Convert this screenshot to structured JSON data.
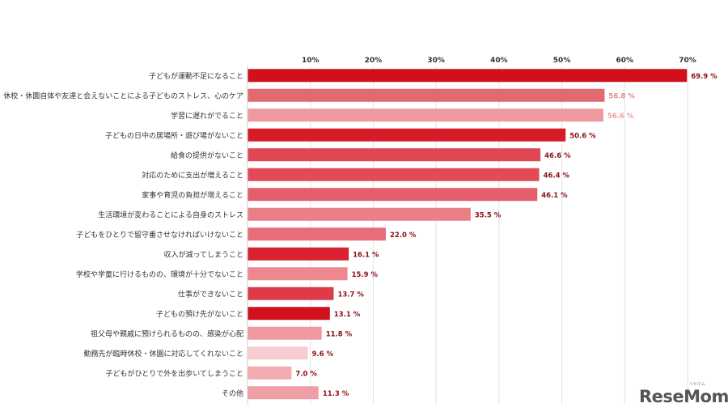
{
  "chart_data": {
    "type": "bar",
    "orientation": "horizontal",
    "title": "",
    "xlabel": "",
    "ylabel": "",
    "xlim": [
      0,
      70
    ],
    "x_ticks": [
      {
        "value": 10,
        "label": "10%"
      },
      {
        "value": 20,
        "label": "20%"
      },
      {
        "value": 30,
        "label": "30%"
      },
      {
        "value": 40,
        "label": "40%"
      },
      {
        "value": 50,
        "label": "50%"
      },
      {
        "value": 60,
        "label": "60%"
      },
      {
        "value": 70,
        "label": "70%"
      }
    ],
    "tick_position": "top",
    "grid": true,
    "legend": false,
    "bars": [
      {
        "category": "子どもが運動不足になること",
        "value": 69.9,
        "label": "69.9 %",
        "color": "#D0111B",
        "label_color": "#8B1118"
      },
      {
        "category": "休校・休園自体や友達と会えないことによる子どものストレス、心のケア",
        "value": 56.8,
        "label": "56.8 %",
        "color": "#E06A6F",
        "label_color": "#E48A8E"
      },
      {
        "category": "学習に遅れがでること",
        "value": 56.6,
        "label": "56.6 %",
        "color": "#EC9A9D",
        "label_color": "#EDA0A3"
      },
      {
        "category": "子どもの日中の居場所・遊び場がないこと",
        "value": 50.6,
        "label": "50.6 %",
        "color": "#D51D2A",
        "label_color": "#8B1118"
      },
      {
        "category": "給食の提供がないこと",
        "value": 46.6,
        "label": "46.6 %",
        "color": "#E14654",
        "label_color": "#8B1118"
      },
      {
        "category": "対応のために支出が増えること",
        "value": 46.4,
        "label": "46.4 %",
        "color": "#E24A58",
        "label_color": "#8B1118"
      },
      {
        "category": "家事や育児の負担が増えること",
        "value": 46.1,
        "label": "46.1 %",
        "color": "#E35E6A",
        "label_color": "#8B1118"
      },
      {
        "category": "生活環境が変わることによる自身のストレス",
        "value": 35.5,
        "label": "35.5 %",
        "color": "#E98088",
        "label_color": "#8B1118"
      },
      {
        "category": "子どもをひとりで留守番させなければいけないこと",
        "value": 22.0,
        "label": "22.0 %",
        "color": "#E56E78",
        "label_color": "#8B1118"
      },
      {
        "category": "収入が減ってしまうこと",
        "value": 16.1,
        "label": "16.1 %",
        "color": "#D8222F",
        "label_color": "#8B1118"
      },
      {
        "category": "学校や学童に行けるものの、環境が十分でないこと",
        "value": 15.9,
        "label": "15.9 %",
        "color": "#EE8890",
        "label_color": "#8B1118"
      },
      {
        "category": "仕事ができないこと",
        "value": 13.7,
        "label": "13.7 %",
        "color": "#DE3A48",
        "label_color": "#8B1118"
      },
      {
        "category": "子どもの預け先がないこと",
        "value": 13.1,
        "label": "13.1 %",
        "color": "#D0111B",
        "label_color": "#8B1118"
      },
      {
        "category": "祖父母や親戚に預けられるものの、感染が心配",
        "value": 11.8,
        "label": "11.8 %",
        "color": "#EE9AA0",
        "label_color": "#8B1118"
      },
      {
        "category": "勤務先が臨時休校・休園に対応してくれないこと",
        "value": 9.6,
        "label": "9.6 %",
        "color": "#F6CDD0",
        "label_color": "#8B1118"
      },
      {
        "category": "子どもがひとりで外を出歩いてしまうこと",
        "value": 7.0,
        "label": "7.0 %",
        "color": "#F2ABB0",
        "label_color": "#8B1118"
      },
      {
        "category": "その他",
        "value": 11.3,
        "label": "11.3 %",
        "color": "#EE9EA4",
        "label_color": "#8B1118"
      }
    ]
  },
  "logo": {
    "text": "ReseMom",
    "ruby": "リセマム",
    "color": "#555555"
  }
}
